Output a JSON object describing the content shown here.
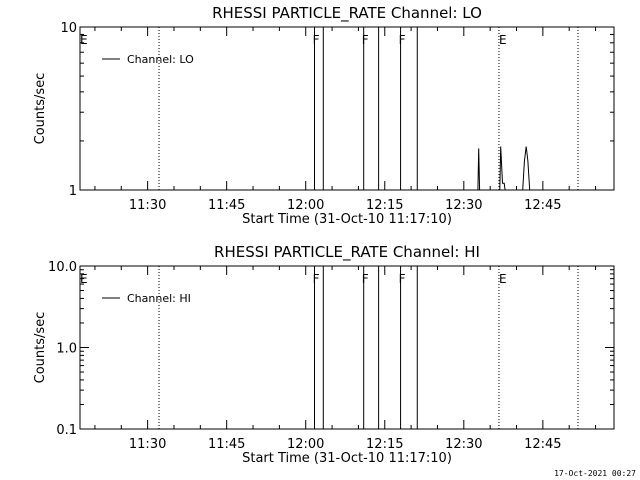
{
  "chart_data": [
    {
      "type": "line",
      "title": "RHESSI PARTICLE_RATE Channel: LO",
      "xlabel": "Start Time (31-Oct-10 11:17:10)",
      "ylabel": "Counts/sec",
      "yscale": "log",
      "ylim": [
        1,
        10
      ],
      "y_tick_labels": [
        "1",
        "10"
      ],
      "x_range": [
        "11:17:10",
        "12:58:30"
      ],
      "x_tick_labels": [
        "11:30",
        "11:45",
        "12:00",
        "12:15",
        "12:30",
        "12:45"
      ],
      "legend": {
        "entries": [
          "Channel: LO"
        ],
        "position": "top-left"
      },
      "markers": [
        {
          "label": "E",
          "time": "11:17:10",
          "style": "none"
        },
        {
          "label": "",
          "time": "11:32:10",
          "style": "dotted"
        },
        {
          "label": "F",
          "time": "12:01:40",
          "style": "solid"
        },
        {
          "label": "F",
          "time": "12:11:00",
          "style": "solid"
        },
        {
          "label": "F",
          "time": "12:18:00",
          "style": "solid"
        },
        {
          "label": "E",
          "time": "12:36:40",
          "style": "dotted"
        },
        {
          "label": "",
          "time": "12:51:40",
          "style": "dotted"
        }
      ],
      "flare_intervals": [
        {
          "start": "12:01:40",
          "end": "12:03:20"
        },
        {
          "start": "12:11:00",
          "end": "12:13:50"
        },
        {
          "start": "12:18:00",
          "end": "12:21:10"
        }
      ],
      "series": [
        {
          "name": "Channel: LO",
          "points": [
            [
              "12:32:40",
              1
            ],
            [
              "12:32:50",
              1.8
            ],
            [
              "12:33:00",
              1
            ],
            [
              "12:33:10",
              1
            ],
            [
              "12:36:50",
              1
            ],
            [
              "12:37:00",
              1.85
            ],
            [
              "12:37:20",
              1.1
            ],
            [
              "12:37:40",
              1.1
            ],
            [
              "12:37:50",
              1
            ],
            [
              "12:41:10",
              1
            ],
            [
              "12:41:30",
              1.5
            ],
            [
              "12:41:50",
              1.85
            ],
            [
              "12:42:10",
              1.5
            ],
            [
              "12:42:30",
              1
            ]
          ]
        }
      ]
    },
    {
      "type": "line",
      "title": "RHESSI PARTICLE_RATE Channel: HI",
      "xlabel": "Start Time (31-Oct-10 11:17:10)",
      "ylabel": "Counts/sec",
      "yscale": "log",
      "ylim": [
        0.1,
        10
      ],
      "y_tick_labels": [
        "0.1",
        "1.0",
        "10.0"
      ],
      "x_range": [
        "11:17:10",
        "12:58:30"
      ],
      "x_tick_labels": [
        "11:30",
        "11:45",
        "12:00",
        "12:15",
        "12:30",
        "12:45"
      ],
      "legend": {
        "entries": [
          "Channel: HI"
        ],
        "position": "top-left"
      },
      "markers": [
        {
          "label": "E",
          "time": "11:17:10",
          "style": "none"
        },
        {
          "label": "",
          "time": "11:32:10",
          "style": "dotted"
        },
        {
          "label": "F",
          "time": "12:01:40",
          "style": "solid"
        },
        {
          "label": "F",
          "time": "12:11:00",
          "style": "solid"
        },
        {
          "label": "F",
          "time": "12:18:00",
          "style": "solid"
        },
        {
          "label": "E",
          "time": "12:36:40",
          "style": "dotted"
        },
        {
          "label": "",
          "time": "12:51:40",
          "style": "dotted"
        }
      ],
      "flare_intervals": [
        {
          "start": "12:01:40",
          "end": "12:03:20"
        },
        {
          "start": "12:11:00",
          "end": "12:13:50"
        },
        {
          "start": "12:18:00",
          "end": "12:21:10"
        }
      ],
      "series": [
        {
          "name": "Channel: HI",
          "points": []
        }
      ]
    }
  ],
  "footer": {
    "timestamp": "17-Oct-2021 00:27"
  }
}
